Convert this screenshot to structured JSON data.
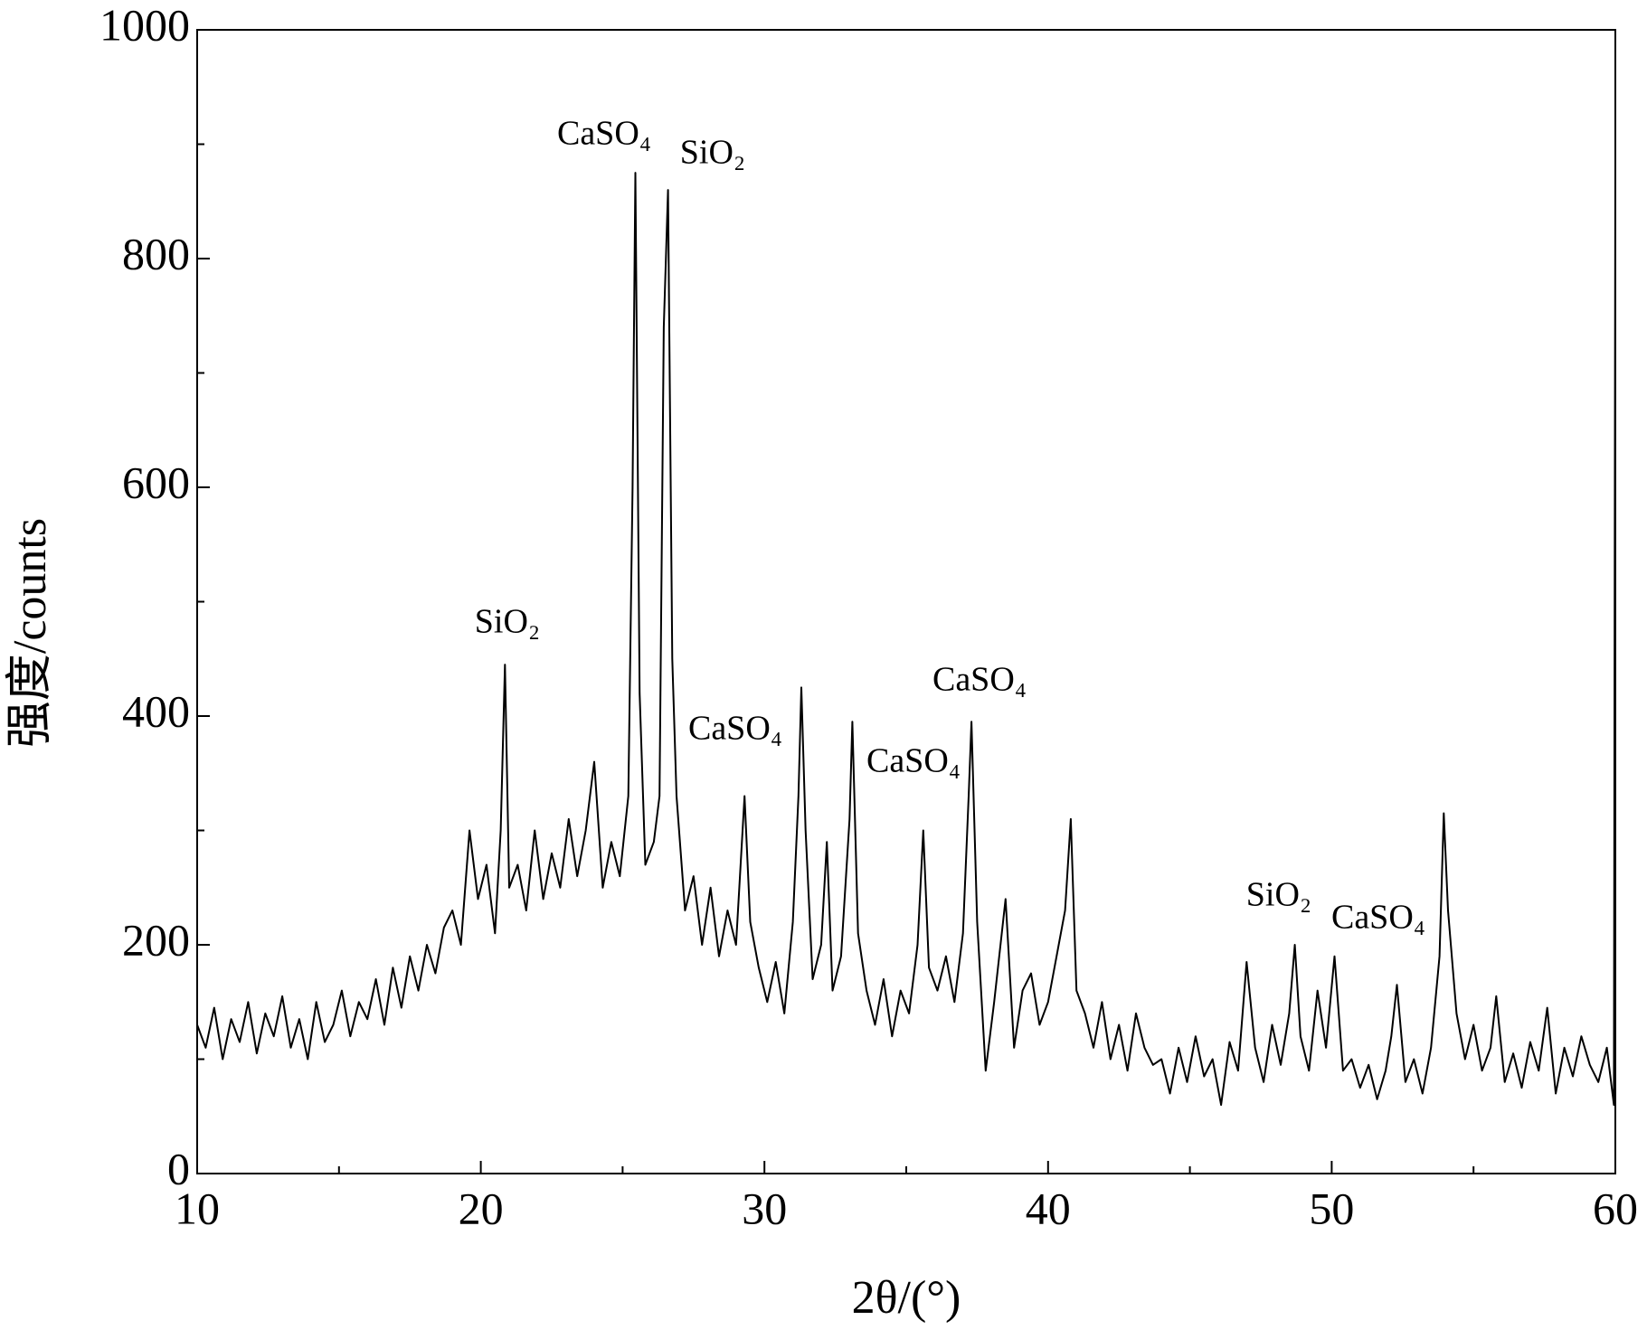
{
  "chart_data": {
    "type": "line",
    "xlabel": "2θ/(°)",
    "ylabel": "强度/counts",
    "xlim": [
      10,
      60
    ],
    "xticks": [
      10,
      20,
      30,
      40,
      50,
      60
    ],
    "xminorticks": [
      15,
      25,
      35,
      45,
      55
    ],
    "ylim": [
      0,
      1000
    ],
    "yticks": [
      0,
      200,
      400,
      600,
      800,
      1000
    ],
    "yminorticks": [
      100,
      300,
      500,
      700,
      900
    ],
    "series": [
      {
        "color": "#000000",
        "x": [
          10,
          10.3,
          10.6,
          10.9,
          11.2,
          11.5,
          11.8,
          12.1,
          12.4,
          12.7,
          13,
          13.3,
          13.6,
          13.9,
          14.2,
          14.5,
          14.8,
          15.1,
          15.4,
          15.7,
          16,
          16.3,
          16.6,
          16.9,
          17.2,
          17.5,
          17.8,
          18.1,
          18.4,
          18.7,
          19,
          19.3,
          19.6,
          19.9,
          20.2,
          20.5,
          20.7,
          20.85,
          21,
          21.3,
          21.6,
          21.9,
          22.2,
          22.5,
          22.8,
          23.1,
          23.4,
          23.7,
          24,
          24.3,
          24.6,
          24.9,
          25.2,
          25.35,
          25.45,
          25.6,
          25.8,
          26.1,
          26.3,
          26.45,
          26.6,
          26.75,
          26.9,
          27.2,
          27.5,
          27.8,
          28.1,
          28.4,
          28.7,
          29,
          29.3,
          29.5,
          29.8,
          30.1,
          30.4,
          30.7,
          31,
          31.2,
          31.3,
          31.45,
          31.7,
          32,
          32.2,
          32.4,
          32.7,
          33,
          33.1,
          33.3,
          33.6,
          33.9,
          34.2,
          34.5,
          34.8,
          35.1,
          35.4,
          35.6,
          35.8,
          36.1,
          36.4,
          36.7,
          37,
          37.2,
          37.3,
          37.5,
          37.8,
          38.1,
          38.5,
          38.8,
          39.1,
          39.4,
          39.7,
          40,
          40.3,
          40.6,
          40.8,
          41,
          41.3,
          41.6,
          41.9,
          42.2,
          42.5,
          42.8,
          43.1,
          43.4,
          43.7,
          44,
          44.3,
          44.6,
          44.9,
          45.2,
          45.5,
          45.8,
          46.1,
          46.4,
          46.7,
          47,
          47.3,
          47.6,
          47.9,
          48.2,
          48.5,
          48.7,
          48.9,
          49.2,
          49.5,
          49.8,
          50.1,
          50.4,
          50.7,
          51,
          51.3,
          51.6,
          51.9,
          52.1,
          52.3,
          52.6,
          52.9,
          53.2,
          53.5,
          53.8,
          53.95,
          54.1,
          54.4,
          54.7,
          55,
          55.3,
          55.6,
          55.8,
          56.1,
          56.4,
          56.7,
          57,
          57.3,
          57.6,
          57.9,
          58.2,
          58.5,
          58.8,
          59.1,
          59.4,
          59.7,
          59.95,
          60
        ],
        "values": [
          130,
          110,
          145,
          100,
          135,
          115,
          150,
          105,
          140,
          120,
          155,
          110,
          135,
          100,
          150,
          115,
          130,
          160,
          120,
          150,
          135,
          170,
          130,
          180,
          145,
          190,
          160,
          200,
          175,
          215,
          230,
          200,
          300,
          240,
          270,
          210,
          300,
          445,
          250,
          270,
          230,
          300,
          240,
          280,
          250,
          310,
          260,
          300,
          360,
          250,
          290,
          260,
          330,
          600,
          875,
          420,
          270,
          290,
          330,
          740,
          860,
          450,
          330,
          230,
          260,
          200,
          250,
          190,
          230,
          200,
          330,
          220,
          180,
          150,
          185,
          140,
          220,
          330,
          425,
          300,
          170,
          200,
          290,
          160,
          190,
          310,
          395,
          210,
          160,
          130,
          170,
          120,
          160,
          140,
          200,
          300,
          180,
          160,
          190,
          150,
          210,
          330,
          395,
          220,
          90,
          150,
          240,
          110,
          160,
          175,
          130,
          150,
          190,
          230,
          310,
          160,
          140,
          110,
          150,
          100,
          130,
          90,
          140,
          110,
          95,
          100,
          70,
          110,
          80,
          120,
          85,
          100,
          60,
          115,
          90,
          185,
          110,
          80,
          130,
          95,
          140,
          200,
          120,
          90,
          160,
          110,
          190,
          90,
          100,
          75,
          95,
          65,
          90,
          120,
          165,
          80,
          100,
          70,
          110,
          190,
          315,
          230,
          140,
          100,
          130,
          90,
          110,
          155,
          80,
          105,
          75,
          115,
          90,
          145,
          70,
          110,
          85,
          120,
          95,
          80,
          110,
          60,
          890
        ]
      }
    ],
    "annotations": [
      "CaSO₄",
      "SiO₂",
      "SiO₂",
      "CaSO₄",
      "CaSO₄",
      "CaSO₄",
      "SiO₂",
      "CaSO₄"
    ]
  }
}
